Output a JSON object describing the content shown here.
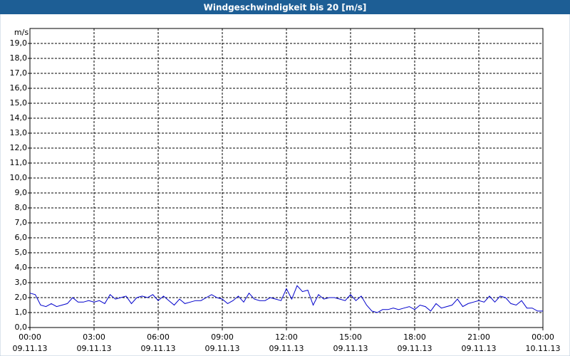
{
  "chart_data": {
    "type": "line",
    "title": "Windgeschwindigkeit bis 20 [m/s]",
    "ylabel": "m/s",
    "x": [
      0,
      0.25,
      0.5,
      0.75,
      1,
      1.25,
      1.5,
      1.75,
      2,
      2.25,
      2.5,
      2.75,
      3,
      3.25,
      3.5,
      3.75,
      4,
      4.25,
      4.5,
      4.75,
      5,
      5.25,
      5.5,
      5.75,
      6,
      6.25,
      6.5,
      6.75,
      7,
      7.25,
      7.5,
      7.75,
      8,
      8.25,
      8.5,
      8.75,
      9,
      9.25,
      9.5,
      9.75,
      10,
      10.25,
      10.5,
      10.75,
      11,
      11.25,
      11.5,
      11.75,
      12,
      12.25,
      12.5,
      12.75,
      13,
      13.25,
      13.5,
      13.75,
      14,
      14.25,
      14.5,
      14.75,
      15,
      15.25,
      15.5,
      15.75,
      16,
      16.25,
      16.5,
      16.75,
      17,
      17.25,
      17.5,
      17.75,
      18,
      18.25,
      18.5,
      18.75,
      19,
      19.25,
      19.5,
      19.75,
      20,
      20.25,
      20.5,
      20.75,
      21,
      21.25,
      21.5,
      21.75,
      22,
      22.25,
      22.5,
      22.75,
      23,
      23.25,
      23.5,
      23.75,
      24
    ],
    "values": [
      2.3,
      2.2,
      1.5,
      1.4,
      1.6,
      1.4,
      1.5,
      1.6,
      2.0,
      1.7,
      1.7,
      1.8,
      1.7,
      1.8,
      1.6,
      2.2,
      1.9,
      2.0,
      2.1,
      1.6,
      2.0,
      2.1,
      2.0,
      2.2,
      1.8,
      2.1,
      1.8,
      1.5,
      1.9,
      1.6,
      1.7,
      1.8,
      1.8,
      2.0,
      2.2,
      2.0,
      1.9,
      1.6,
      1.8,
      2.1,
      1.7,
      2.3,
      1.9,
      1.8,
      1.8,
      2.0,
      1.9,
      1.8,
      2.6,
      1.9,
      2.8,
      2.4,
      2.5,
      1.5,
      2.2,
      1.9,
      2.0,
      2.0,
      1.9,
      1.8,
      2.2,
      1.8,
      2.1,
      1.5,
      1.1,
      1.0,
      1.2,
      1.2,
      1.3,
      1.2,
      1.3,
      1.4,
      1.2,
      1.5,
      1.4,
      1.1,
      1.6,
      1.3,
      1.4,
      1.5,
      1.9,
      1.4,
      1.6,
      1.7,
      1.8,
      1.7,
      2.1,
      1.7,
      2.1,
      2.0,
      1.6,
      1.5,
      1.8,
      1.3,
      1.3,
      1.1,
      1.1
    ],
    "color": "#0000cc",
    "xlim": [
      0,
      24
    ],
    "ylim": [
      0,
      20
    ],
    "grid": true,
    "xticks": [
      {
        "value": 0,
        "label": [
          "00:00",
          "09.11.13"
        ]
      },
      {
        "value": 3,
        "label": [
          "03:00",
          "09.11.13"
        ]
      },
      {
        "value": 6,
        "label": [
          "06:00",
          "09.11.13"
        ]
      },
      {
        "value": 9,
        "label": [
          "09:00",
          "09.11.13"
        ]
      },
      {
        "value": 12,
        "label": [
          "12:00",
          "09.11.13"
        ]
      },
      {
        "value": 15,
        "label": [
          "15:00",
          "09.11.13"
        ]
      },
      {
        "value": 18,
        "label": [
          "18:00",
          "09.11.13"
        ]
      },
      {
        "value": 21,
        "label": [
          "21:00",
          "09.11.13"
        ]
      },
      {
        "value": 24,
        "label": [
          "00:00",
          "10.11.13"
        ]
      }
    ],
    "yticks": [
      {
        "value": 0,
        "label": "0,0"
      },
      {
        "value": 1,
        "label": "1,0"
      },
      {
        "value": 2,
        "label": "2,0"
      },
      {
        "value": 3,
        "label": "3,0"
      },
      {
        "value": 4,
        "label": "4,0"
      },
      {
        "value": 5,
        "label": "5,0"
      },
      {
        "value": 6,
        "label": "6,0"
      },
      {
        "value": 7,
        "label": "7,0"
      },
      {
        "value": 8,
        "label": "8,0"
      },
      {
        "value": 9,
        "label": "9,0"
      },
      {
        "value": 10,
        "label": "10,0"
      },
      {
        "value": 11,
        "label": "11,0"
      },
      {
        "value": 12,
        "label": "12,0"
      },
      {
        "value": 13,
        "label": "13,0"
      },
      {
        "value": 14,
        "label": "14,0"
      },
      {
        "value": 15,
        "label": "15,0"
      },
      {
        "value": 16,
        "label": "16,0"
      },
      {
        "value": 17,
        "label": "17,0"
      },
      {
        "value": 18,
        "label": "18,0"
      },
      {
        "value": 19,
        "label": "19,0"
      }
    ]
  }
}
